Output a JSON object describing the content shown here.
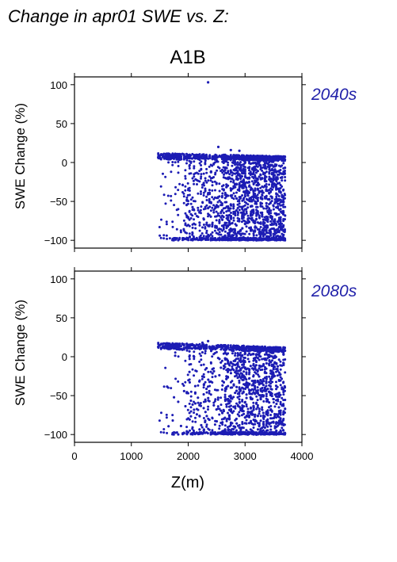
{
  "figure": {
    "title": "Change in apr01 SWE vs. Z:",
    "scenario": "A1B",
    "point_color": "#1c1cb4",
    "period_label_color": "#2222aa"
  },
  "chart_data": [
    {
      "type": "scatter",
      "panel": "2040s",
      "title": "2040s",
      "xlabel": "",
      "ylabel": "SWE Change (%)",
      "xlim": [
        0,
        4000
      ],
      "ylim": [
        -110,
        110
      ],
      "xticks": [
        0,
        1000,
        2000,
        3000,
        4000
      ],
      "yticks": [
        -100,
        -50,
        0,
        50,
        100
      ],
      "ytick_labels": [
        "−100",
        "−50",
        "0",
        "50",
        "100"
      ],
      "grid": false,
      "series": [
        {
          "z_range": [
            1450,
            3700
          ],
          "change_range": [
            -100,
            20
          ],
          "outliers": [
            {
              "x": 2350,
              "y": 103
            },
            {
              "x": 2530,
              "y": 20
            },
            {
              "x": 2750,
              "y": 16
            },
            {
              "x": 2900,
              "y": 15
            }
          ]
        }
      ]
    },
    {
      "type": "scatter",
      "panel": "2080s",
      "title": "2080s",
      "xlabel": "Z(m)",
      "ylabel": "SWE Change (%)",
      "xlim": [
        0,
        4000
      ],
      "ylim": [
        -110,
        110
      ],
      "xticks": [
        0,
        1000,
        2000,
        3000,
        4000
      ],
      "xtick_labels": [
        "0",
        "1000",
        "2000",
        "3000",
        "4000"
      ],
      "yticks": [
        -100,
        -50,
        0,
        50,
        100
      ],
      "ytick_labels": [
        "−100",
        "−50",
        "0",
        "50",
        "100"
      ],
      "grid": false,
      "series": [
        {
          "z_range": [
            1450,
            3700
          ],
          "change_range": [
            -100,
            20
          ],
          "outliers": [
            {
              "x": 2350,
              "y": 20
            },
            {
              "x": 2250,
              "y": 18
            }
          ]
        }
      ]
    }
  ]
}
